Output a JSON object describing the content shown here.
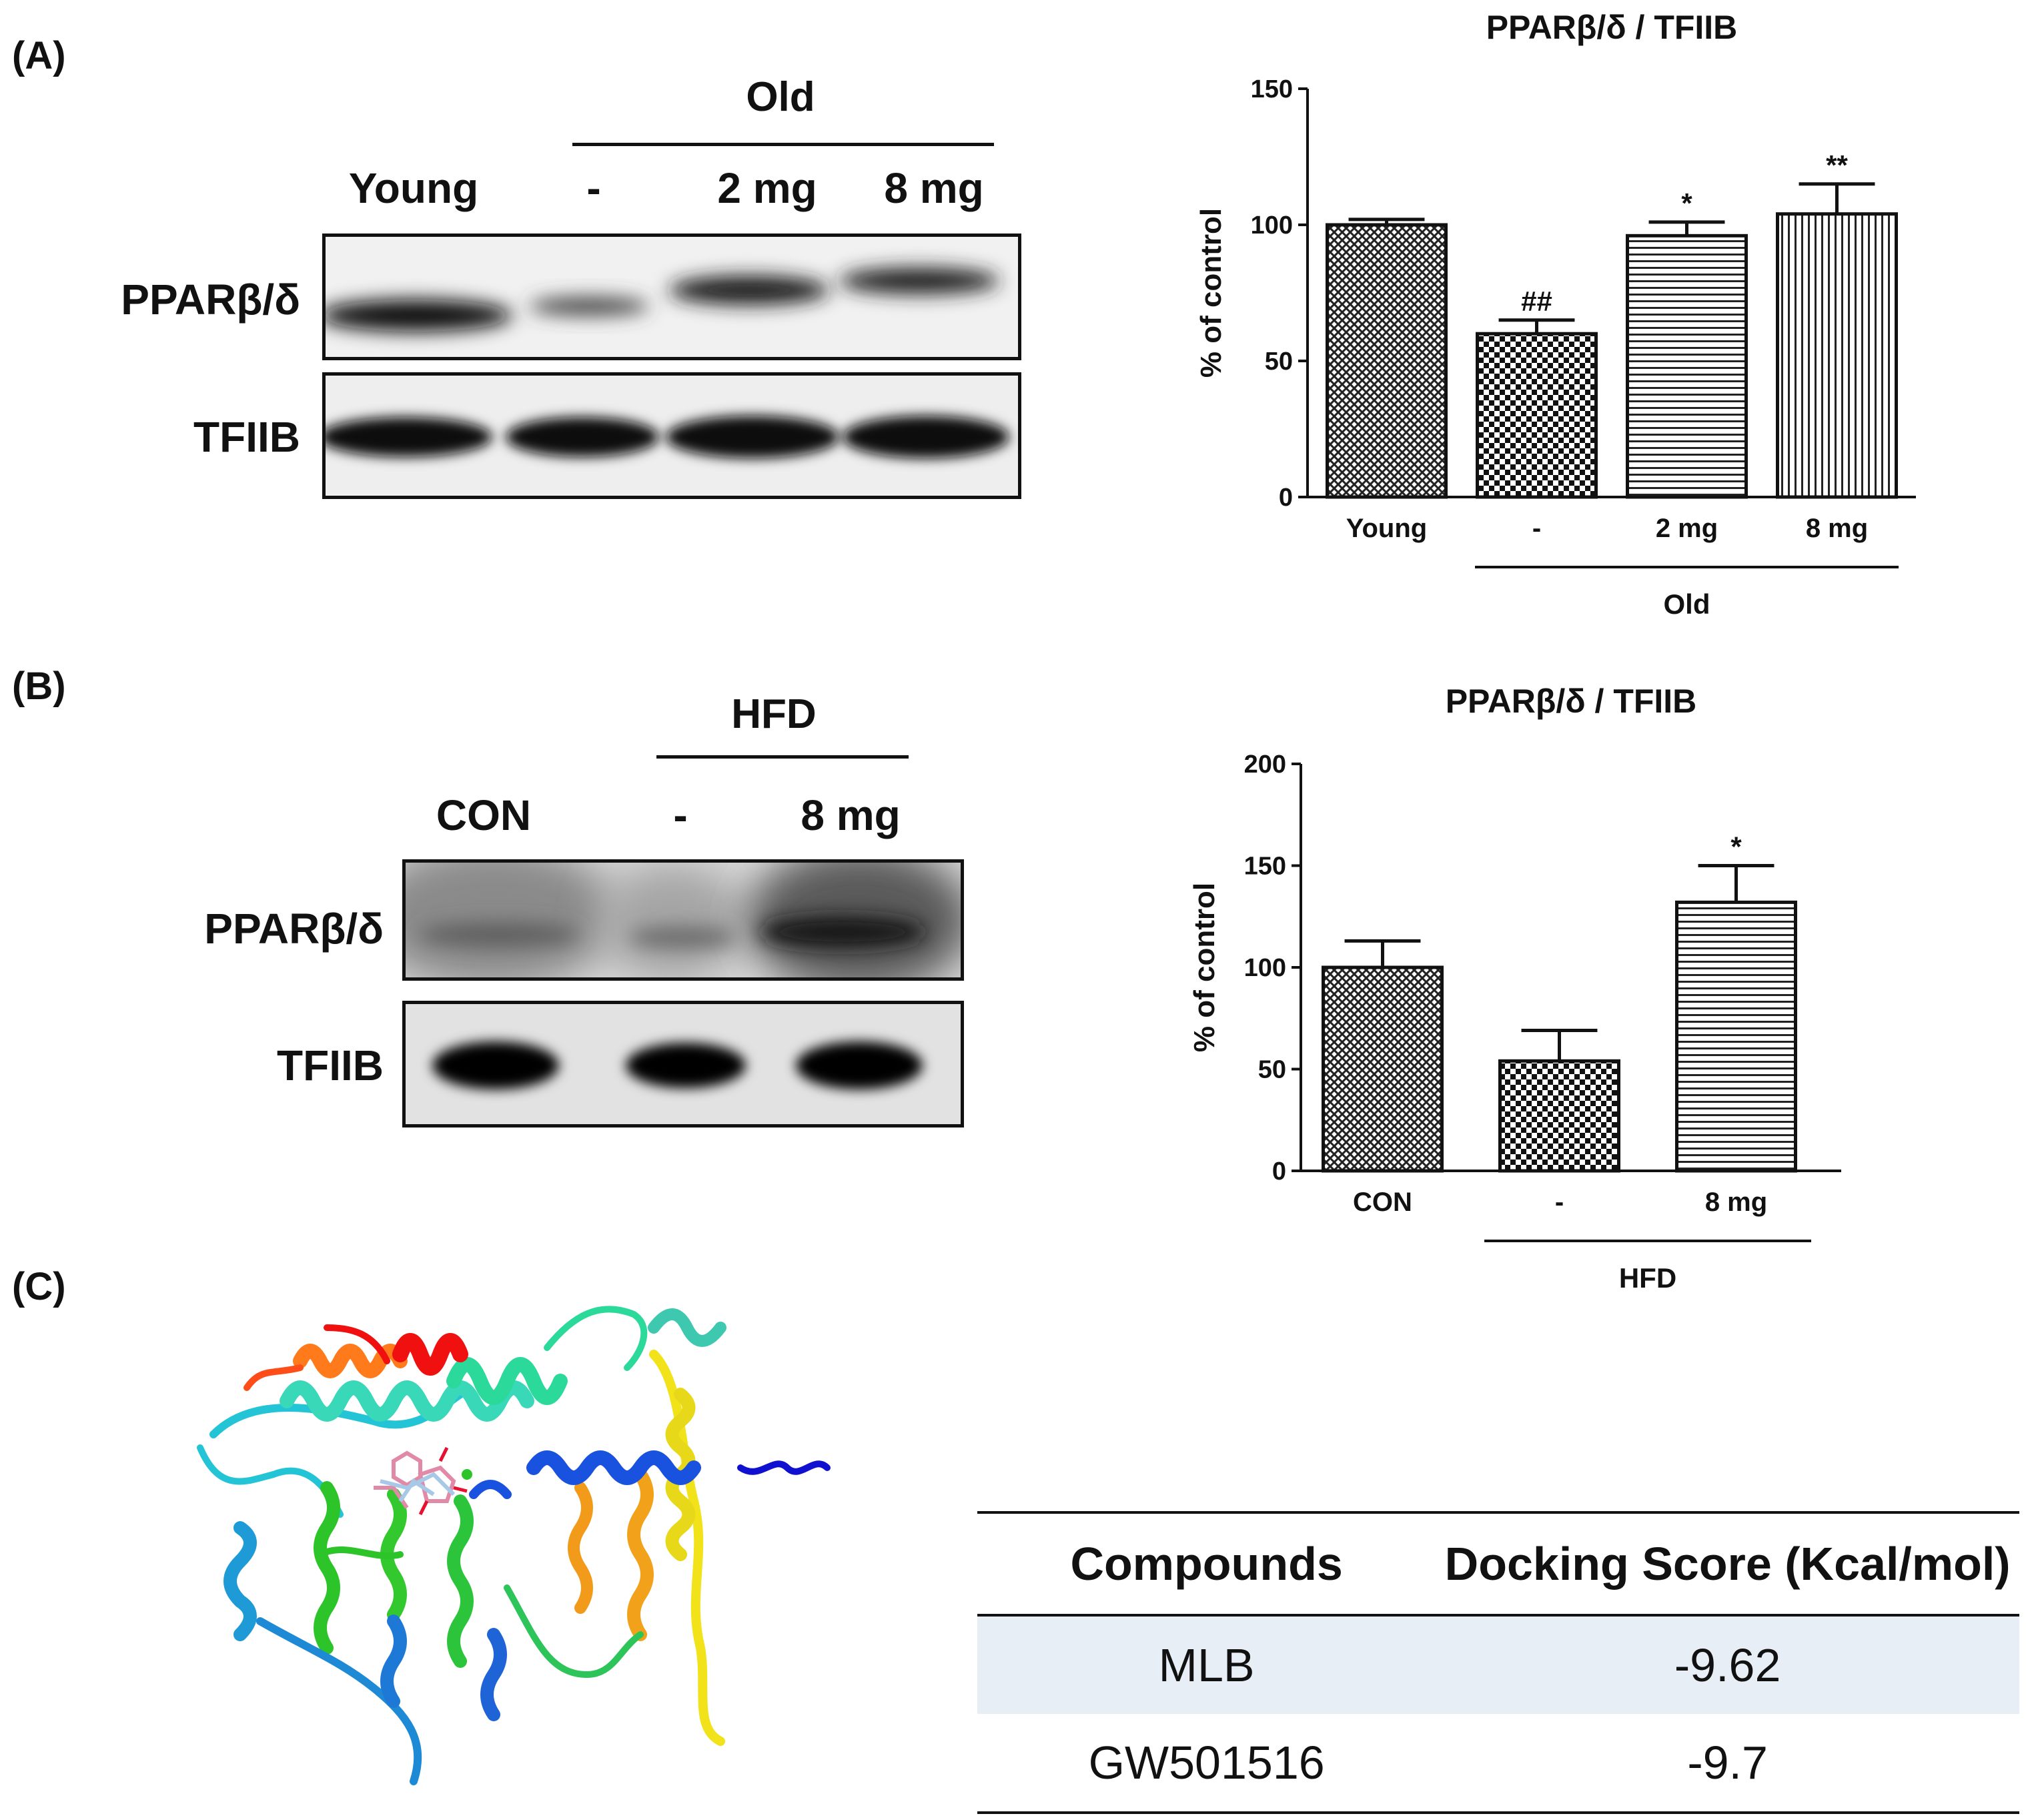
{
  "panels": {
    "a": {
      "label": "(A)",
      "blot": {
        "group_label": "Old",
        "lanes": [
          "Young",
          "-",
          "2 mg",
          "8 mg"
        ],
        "rows": [
          "PPARβ/δ",
          "TFIIB"
        ]
      }
    },
    "b": {
      "label": "(B)",
      "blot": {
        "group_label": "HFD",
        "lanes": [
          "CON",
          "-",
          "8 mg"
        ],
        "rows": [
          "PPARβ/δ",
          "TFIIB"
        ]
      }
    },
    "c": {
      "label": "(C)",
      "table": {
        "headers": [
          "Compounds",
          "Docking Score (Kcal/mol)"
        ],
        "rows": [
          {
            "compound": "MLB",
            "score": "-9.62"
          },
          {
            "compound": "GW501516",
            "score": "-9.7"
          }
        ],
        "highlight_color": "#e8eef6"
      }
    }
  },
  "chart_data": [
    {
      "type": "bar",
      "title": "PPARβ/δ / TFIIB",
      "ylabel": "% of control",
      "xlabel": "",
      "categories": [
        "Young",
        "-",
        "2 mg",
        "8 mg"
      ],
      "values": [
        100,
        60,
        96,
        104
      ],
      "errors": [
        2,
        5,
        5,
        11
      ],
      "annotations": [
        "",
        "##",
        "*",
        "**"
      ],
      "patterns": [
        "crosshatch",
        "checker",
        "horizontal",
        "vertical"
      ],
      "group_label": "Old",
      "group_span": [
        1,
        3
      ],
      "ylim": [
        0,
        150
      ],
      "yticks": [
        0,
        50,
        100,
        150
      ],
      "grid": false,
      "legend": "none"
    },
    {
      "type": "bar",
      "title": "PPARβ/δ / TFIIB",
      "ylabel": "% of control",
      "xlabel": "",
      "categories": [
        "CON",
        "-",
        "8 mg"
      ],
      "values": [
        100,
        54,
        132
      ],
      "errors": [
        13,
        15,
        18
      ],
      "annotations": [
        "",
        "",
        "*"
      ],
      "patterns": [
        "crosshatch",
        "checker",
        "horizontal"
      ],
      "group_label": "HFD",
      "group_span": [
        1,
        2
      ],
      "ylim": [
        0,
        200
      ],
      "yticks": [
        0,
        50,
        100,
        150,
        200
      ],
      "grid": false,
      "legend": "none"
    }
  ]
}
